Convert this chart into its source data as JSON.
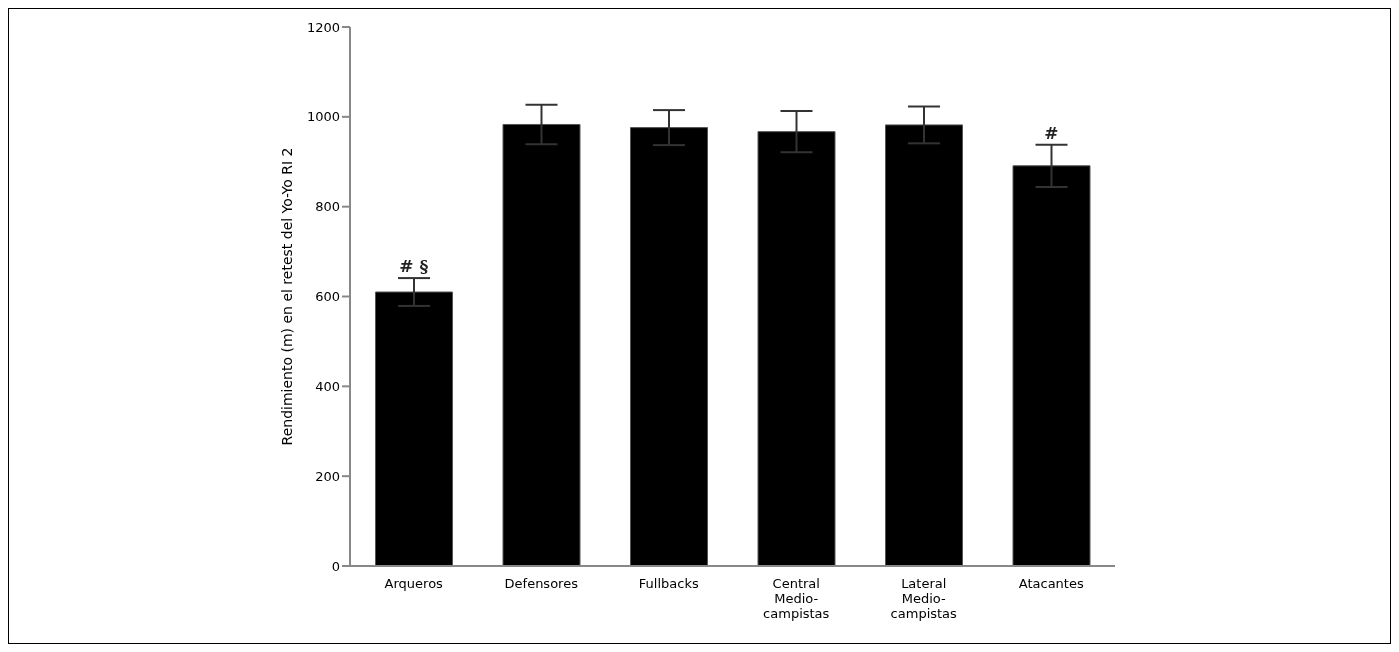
{
  "chart_data": {
    "type": "bar",
    "ylabel": "Rendimiento (m) en el retest del Yo-Yo RI 2",
    "categories": [
      "Arqueros",
      "Defensores",
      "Fullbacks",
      "Central\nMedio-\ncampistas",
      "Lateral\nMedio-\ncampistas",
      "Atacantes"
    ],
    "values": [
      610,
      983,
      976,
      967,
      982,
      891
    ],
    "errors": [
      31,
      44,
      39,
      46,
      41,
      47
    ],
    "color": "#000000",
    "ylim": [
      0,
      1200
    ],
    "yticks": [
      0,
      200,
      400,
      600,
      800,
      1000,
      1200
    ],
    "grid": false,
    "annotations": [
      {
        "text": "# §",
        "x": "Arqueros",
        "y": 641
      },
      {
        "text": "#",
        "x": "Atacantes",
        "y": 938
      }
    ]
  }
}
